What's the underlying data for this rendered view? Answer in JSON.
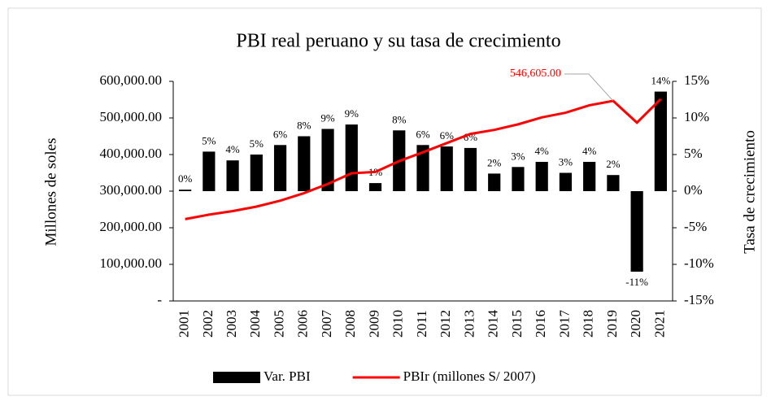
{
  "chart_data": {
    "type": "combo",
    "title": "PBI real peruano y su tasa de crecimiento",
    "y_label": "Millones de soles",
    "y2_label": "Tasa de crecimiento",
    "categories": [
      "2001",
      "2002",
      "2003",
      "2004",
      "2005",
      "2006",
      "2007",
      "2008",
      "2009",
      "2010",
      "2011",
      "2012",
      "2013",
      "2014",
      "2015",
      "2016",
      "2017",
      "2018",
      "2019",
      "2020",
      "2021"
    ],
    "series": [
      {
        "name": "Var. PBI",
        "type": "bar",
        "axis": "y2",
        "color": "#000000",
        "values": [
          0.2,
          5.4,
          4.2,
          5.0,
          6.3,
          7.5,
          8.5,
          9.1,
          1.1,
          8.3,
          6.3,
          6.1,
          5.9,
          2.4,
          3.3,
          4.0,
          2.5,
          4.0,
          2.2,
          -11.0,
          13.6
        ],
        "value_labels": [
          "0%",
          "5%",
          "4%",
          "5%",
          "6%",
          "8%",
          "9%",
          "9%",
          "1%",
          "8%",
          "6%",
          "6%",
          "6%",
          "2%",
          "3%",
          "4%",
          "3%",
          "4%",
          "2%",
          "-11%",
          "14%"
        ]
      },
      {
        "name": "PBIr (millones S/ 2007)",
        "type": "line",
        "axis": "y",
        "color": "#ff0000",
        "values": [
          223580,
          235773,
          245593,
          257770,
          273971,
          294598,
          319693,
          348923,
          352584,
          382081,
          406256,
          431199,
          456435,
          467308,
          482506,
          501581,
          514215,
          534665,
          546605,
          487191,
          551714
        ],
        "value_labels": [
          null,
          null,
          null,
          null,
          null,
          null,
          null,
          null,
          null,
          null,
          null,
          null,
          null,
          null,
          null,
          null,
          null,
          null,
          "546,605.00",
          null,
          null
        ]
      }
    ],
    "ylim": [
      0,
      600000
    ],
    "yticks": [
      {
        "value": 0,
        "label": "-"
      },
      {
        "value": 100000,
        "label": "100,000.00"
      },
      {
        "value": 200000,
        "label": "200,000.00"
      },
      {
        "value": 300000,
        "label": "300,000.00"
      },
      {
        "value": 400000,
        "label": "400,000.00"
      },
      {
        "value": 500000,
        "label": "500,000.00"
      },
      {
        "value": 600000,
        "label": "600,000.00"
      }
    ],
    "y2lim": [
      -15,
      15
    ],
    "y2ticks": [
      {
        "value": -15,
        "label": "-15%"
      },
      {
        "value": -10,
        "label": "-10%"
      },
      {
        "value": -5,
        "label": "-5%"
      },
      {
        "value": 0,
        "label": "0%"
      },
      {
        "value": 5,
        "label": "5%"
      },
      {
        "value": 10,
        "label": "10%"
      },
      {
        "value": 15,
        "label": "15%"
      }
    ],
    "legend": "bottom"
  }
}
